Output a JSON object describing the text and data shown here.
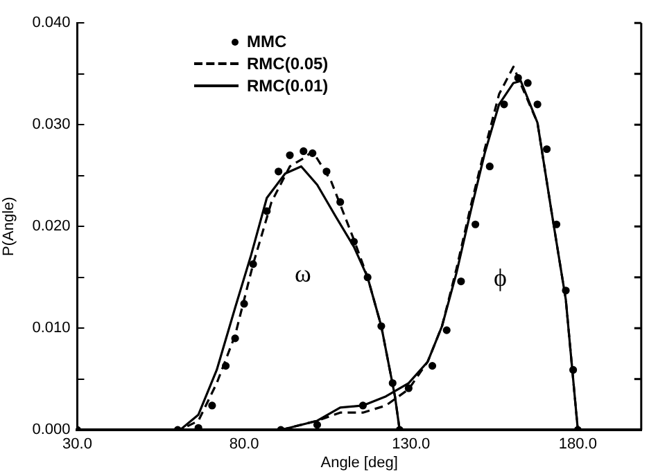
{
  "chart_data": {
    "type": "line",
    "xlabel": "Angle [deg]",
    "ylabel": "P(Angle)",
    "xlim": [
      30,
      199
    ],
    "ylim": [
      0,
      0.04
    ],
    "xticks": [
      {
        "value": 30,
        "label": "30.0"
      },
      {
        "value": 80,
        "label": "80.0"
      },
      {
        "value": 130,
        "label": "130.0"
      },
      {
        "value": 180,
        "label": "180.0"
      }
    ],
    "yticks": [
      {
        "value": 0,
        "label": "0.000"
      },
      {
        "value": 0.005,
        "label": null
      },
      {
        "value": 0.01,
        "label": "0.010"
      },
      {
        "value": 0.015,
        "label": null
      },
      {
        "value": 0.02,
        "label": "0.020"
      },
      {
        "value": 0.025,
        "label": null
      },
      {
        "value": 0.03,
        "label": "0.030"
      },
      {
        "value": 0.035,
        "label": null
      },
      {
        "value": 0.04,
        "label": "0.040"
      }
    ],
    "grid": false,
    "legend": "top left",
    "annotations": [
      "ω",
      "ϕ"
    ],
    "series": [
      {
        "name": "MMC",
        "type": "scatter",
        "marker": "circle",
        "color": "#000000",
        "x": [
          30,
          60.1,
          66.3,
          70.4,
          74.5,
          77.3,
          80,
          82.7,
          86.8,
          90.3,
          93.7,
          97.8,
          100.5,
          104.7,
          108.8,
          112.9,
          117,
          121.1,
          124.5,
          126.6
        ],
        "values": [
          0,
          0,
          0.0002,
          0.0024,
          0.0063,
          0.009,
          0.0124,
          0.0163,
          0.0215,
          0.0254,
          0.027,
          0.0274,
          0.0272,
          0.0254,
          0.0224,
          0.0185,
          0.015,
          0.0102,
          0.0046,
          0
        ]
      },
      {
        "name": "RMC(0.05)",
        "type": "line",
        "marker": "none",
        "line_style": "dashed",
        "color": "#000000",
        "x": [
          30,
          60.8,
          66.3,
          71.8,
          77.3,
          82.7,
          88.2,
          93.7,
          97.8,
          100.5,
          106,
          112.9,
          117,
          121.1,
          125.2,
          126.6
        ],
        "values": [
          0,
          0,
          0.0009,
          0.0046,
          0.0093,
          0.0163,
          0.0224,
          0.0259,
          0.0267,
          0.0274,
          0.0245,
          0.0187,
          0.015,
          0.0102,
          0.0033,
          0
        ]
      },
      {
        "name": "RMC(0.01)",
        "type": "line",
        "marker": "none",
        "line_style": "solid",
        "color": "#000000",
        "x": [
          30,
          60.8,
          66.3,
          71.8,
          77.3,
          82.1,
          86.8,
          92.3,
          97.1,
          101.9,
          107.4,
          112.9,
          117,
          121.1,
          125.2,
          126.6
        ],
        "values": [
          0,
          0,
          0.0015,
          0.0059,
          0.012,
          0.0172,
          0.0228,
          0.0252,
          0.0259,
          0.0241,
          0.021,
          0.018,
          0.015,
          0.0102,
          0.0033,
          0
        ]
      },
      {
        "type": "scatter",
        "marker": "circle",
        "color": "#000000",
        "x": [
          91,
          101.9,
          115.6,
          129.3,
          136.4,
          140.7,
          145,
          149.3,
          153.6,
          157.9,
          162.1,
          165,
          167.9,
          170.7,
          173.6,
          176.4,
          178.6,
          180
        ],
        "values": [
          0,
          0.0005,
          0.0024,
          0.0041,
          0.0063,
          0.0098,
          0.0146,
          0.0202,
          0.0259,
          0.032,
          0.0346,
          0.0341,
          0.032,
          0.0276,
          0.0202,
          0.0137,
          0.0059,
          0
        ]
      },
      {
        "type": "line",
        "marker": "none",
        "line_style": "dashed",
        "color": "#000000",
        "x": [
          91,
          101.9,
          108.8,
          115.6,
          122.5,
          129.3,
          135,
          139.3,
          143.6,
          147.9,
          152.1,
          156.4,
          160.7,
          162.9,
          167.9,
          172.1,
          176.4,
          180
        ],
        "values": [
          0,
          0.0009,
          0.0017,
          0.0017,
          0.0024,
          0.004,
          0.0067,
          0.0102,
          0.0158,
          0.022,
          0.0276,
          0.033,
          0.0357,
          0.034,
          0.0302,
          0.0215,
          0.0128,
          0
        ]
      },
      {
        "type": "line",
        "marker": "none",
        "line_style": "solid",
        "color": "#000000",
        "x": [
          91,
          101.9,
          108.8,
          115.6,
          122.5,
          129.3,
          135,
          139.3,
          143.6,
          147.9,
          152.1,
          156.4,
          160.7,
          162.9,
          167.9,
          172.1,
          176.4,
          180
        ],
        "values": [
          0,
          0.0009,
          0.0022,
          0.0024,
          0.0033,
          0.0046,
          0.0067,
          0.0102,
          0.0154,
          0.0215,
          0.0272,
          0.032,
          0.0341,
          0.0343,
          0.0302,
          0.0215,
          0.0128,
          0
        ]
      }
    ]
  }
}
